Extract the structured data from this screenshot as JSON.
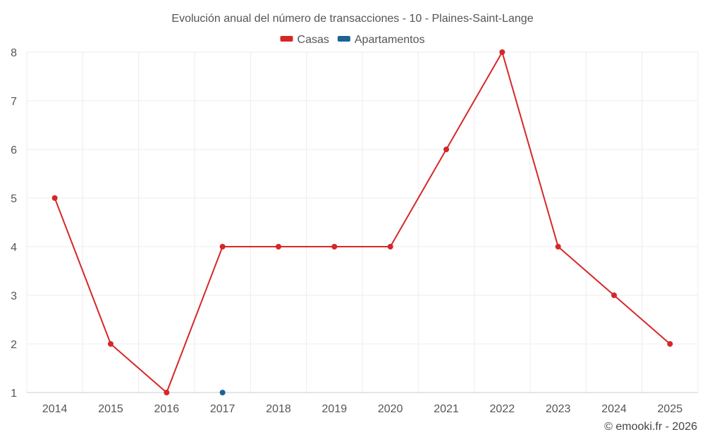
{
  "chart_data": {
    "type": "line",
    "title": "Evolución anual del número de transacciones - 10 - Plaines-Saint-Lange",
    "xlabel": "",
    "ylabel": "",
    "categories": [
      "2014",
      "2015",
      "2016",
      "2017",
      "2018",
      "2019",
      "2020",
      "2021",
      "2022",
      "2023",
      "2024",
      "2025"
    ],
    "ylim": [
      1,
      8
    ],
    "yticks": [
      1,
      2,
      3,
      4,
      5,
      6,
      7,
      8
    ],
    "grid": true,
    "legend_position": "top-center",
    "series": [
      {
        "name": "Casas",
        "color": "#d62728",
        "values": [
          5,
          2,
          1,
          4,
          4,
          4,
          4,
          6,
          8,
          4,
          3,
          2
        ]
      },
      {
        "name": "Apartamentos",
        "color": "#1a6496",
        "values": [
          null,
          null,
          null,
          1,
          null,
          null,
          null,
          null,
          null,
          null,
          null,
          null
        ]
      }
    ],
    "credit": "© emooki.fr - 2026"
  }
}
